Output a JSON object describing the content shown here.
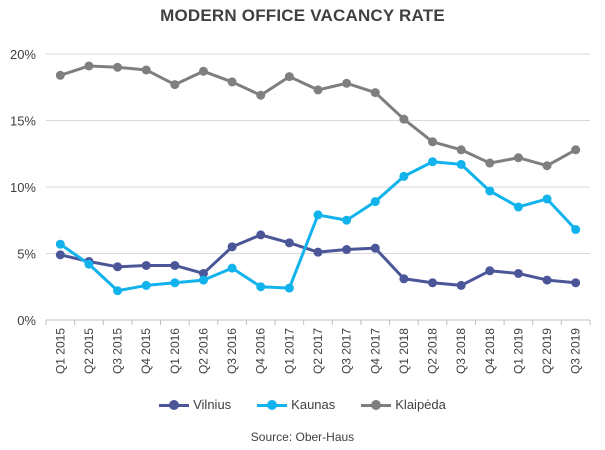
{
  "chart_data": {
    "type": "line",
    "title": "MODERN OFFICE VACANCY RATE",
    "source": "Source: Ober-Haus",
    "categories": [
      "Q1 2015",
      "Q2 2015",
      "Q3 2015",
      "Q4 2015",
      "Q1 2016",
      "Q2 2016",
      "Q3 2016",
      "Q4 2016",
      "Q1 2017",
      "Q2 2017",
      "Q3 2017",
      "Q4 2017",
      "Q1 2018",
      "Q2 2018",
      "Q3 2018",
      "Q4 2018",
      "Q1 2019",
      "Q2 2019",
      "Q3 2019"
    ],
    "y_ticks": [
      "0%",
      "5%",
      "10%",
      "15%",
      "20%"
    ],
    "ylim": [
      0,
      20
    ],
    "grid": true,
    "legend_position": "bottom",
    "series": [
      {
        "name": "Vilnius",
        "color": "#4b5699",
        "values": [
          4.9,
          4.4,
          4.0,
          4.1,
          4.1,
          3.5,
          5.5,
          6.4,
          5.8,
          5.1,
          5.3,
          5.4,
          3.1,
          2.8,
          2.6,
          3.7,
          3.5,
          3.0,
          2.8
        ]
      },
      {
        "name": "Kaunas",
        "color": "#12b3ec",
        "values": [
          5.7,
          4.2,
          2.2,
          2.6,
          2.8,
          3.0,
          3.9,
          2.5,
          2.4,
          7.9,
          7.5,
          8.9,
          10.8,
          11.9,
          11.7,
          9.7,
          8.5,
          9.1,
          6.8
        ]
      },
      {
        "name": "Klaipėda",
        "color": "#7f7f7f",
        "values": [
          18.4,
          19.1,
          19.0,
          18.8,
          17.7,
          18.7,
          17.9,
          16.9,
          18.3,
          17.3,
          17.8,
          17.1,
          15.1,
          13.4,
          12.8,
          11.8,
          12.2,
          11.6,
          12.8
        ]
      }
    ]
  }
}
